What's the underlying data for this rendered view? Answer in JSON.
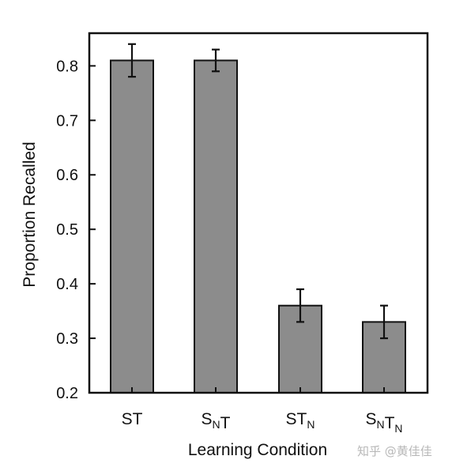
{
  "chart_data": {
    "type": "bar",
    "categories": [
      {
        "base": "S",
        "sub1": "",
        "mid": "T",
        "sub2": ""
      },
      {
        "base": "S",
        "sub1": "N",
        "mid": "T",
        "sub2": ""
      },
      {
        "base": "S",
        "sub1": "",
        "mid": "T",
        "sub2": "N"
      },
      {
        "base": "S",
        "sub1": "N",
        "mid": "T",
        "sub2": "N"
      }
    ],
    "values": [
      0.81,
      0.81,
      0.36,
      0.33
    ],
    "error_low": [
      0.78,
      0.79,
      0.33,
      0.3
    ],
    "error_high": [
      0.84,
      0.83,
      0.39,
      0.36
    ],
    "xlabel": "Learning Condition",
    "ylabel": "Proportion Recalled",
    "ylim": [
      0.2,
      0.86
    ],
    "yticks": [
      "0.2",
      "0.3",
      "0.4",
      "0.5",
      "0.6",
      "0.7",
      "0.8"
    ],
    "bar_color": "#8c8c8c",
    "grid": false
  },
  "watermark": "知乎 @黄佳佳"
}
